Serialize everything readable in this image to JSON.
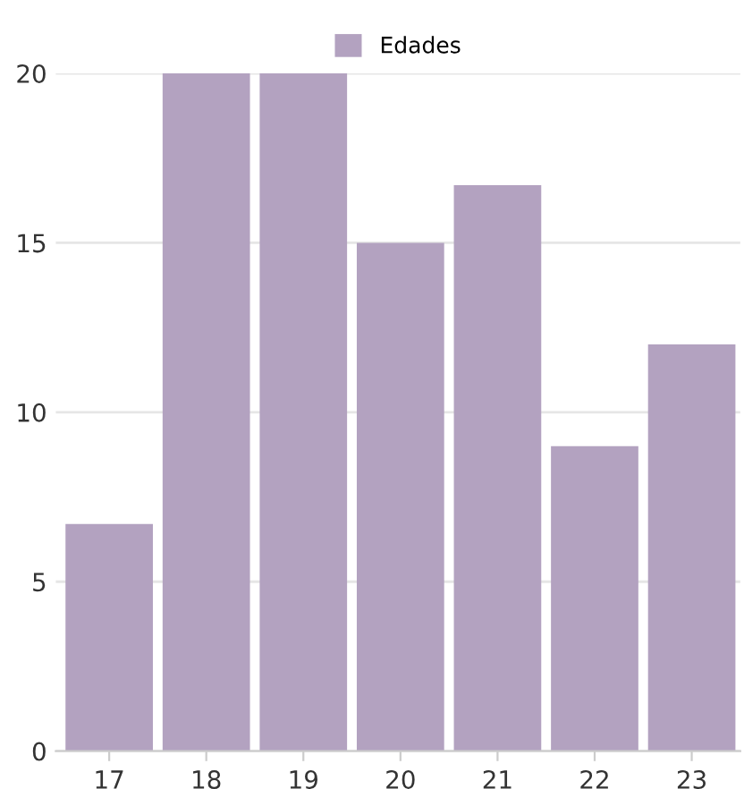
{
  "chart_data": {
    "type": "bar",
    "categories": [
      "17",
      "18",
      "19",
      "20",
      "21",
      "22",
      "23"
    ],
    "series": [
      {
        "name": "Edades",
        "color": "#b3a2c0",
        "values": [
          6.7,
          20,
          20,
          15,
          16.7,
          9,
          12
        ]
      }
    ],
    "ylim": [
      0,
      20
    ],
    "yticks": [
      0,
      5,
      10,
      15,
      20
    ],
    "grid": "y",
    "legend": "top"
  }
}
